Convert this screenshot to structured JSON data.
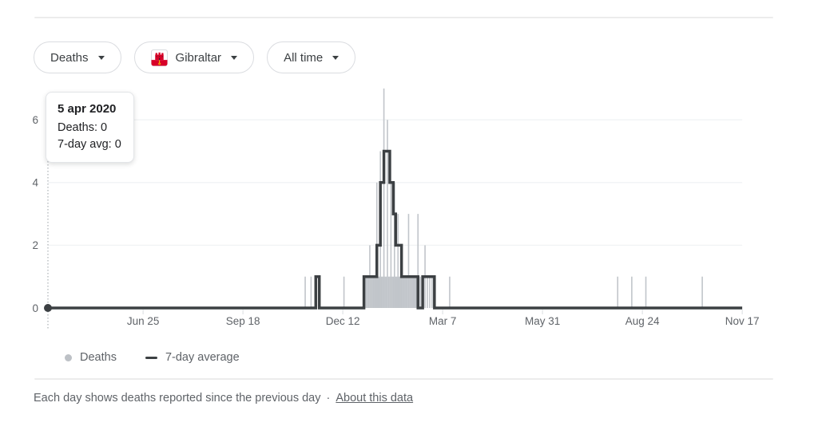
{
  "filters": {
    "metric": {
      "label": "Deaths"
    },
    "region": {
      "label": "Gibraltar"
    },
    "time": {
      "label": "All time"
    }
  },
  "icons": {
    "dropdown_caret": "chevron-down-icon",
    "region_flag": "gibraltar-flag-icon"
  },
  "tooltip": {
    "date": "5 apr 2020",
    "deaths": "Deaths: 0",
    "avg": "7-day avg: 0"
  },
  "chart_data": {
    "type": "bar",
    "x_start_date_label": "5 apr 2020",
    "x_axis": {
      "domain_days": [
        0,
        591
      ],
      "ticks": [
        {
          "label": "Jun 25",
          "day": 81
        },
        {
          "label": "Sep 18",
          "day": 166
        },
        {
          "label": "Dec 12",
          "day": 251
        },
        {
          "label": "Mar 7",
          "day": 336
        },
        {
          "label": "May 31",
          "day": 421
        },
        {
          "label": "Aug 24",
          "day": 506
        },
        {
          "label": "Nov 17",
          "day": 591
        }
      ]
    },
    "y_axis": {
      "ticks": [
        0,
        2,
        4,
        6
      ],
      "max": 7
    },
    "bars_day_value": [
      [
        219,
        1
      ],
      [
        224,
        1
      ],
      [
        252,
        1
      ],
      [
        269,
        1
      ],
      [
        270,
        1
      ],
      [
        271,
        1
      ],
      [
        272,
        1
      ],
      [
        273,
        1
      ],
      [
        274,
        2
      ],
      [
        275,
        1
      ],
      [
        276,
        1
      ],
      [
        277,
        1
      ],
      [
        278,
        1
      ],
      [
        279,
        1
      ],
      [
        280,
        4
      ],
      [
        281,
        1
      ],
      [
        282,
        1
      ],
      [
        283,
        5
      ],
      [
        284,
        1
      ],
      [
        285,
        1
      ],
      [
        286,
        7
      ],
      [
        287,
        1
      ],
      [
        288,
        1
      ],
      [
        289,
        6
      ],
      [
        290,
        1
      ],
      [
        291,
        1
      ],
      [
        292,
        4
      ],
      [
        293,
        1
      ],
      [
        294,
        1
      ],
      [
        295,
        4
      ],
      [
        296,
        1
      ],
      [
        297,
        1
      ],
      [
        298,
        3
      ],
      [
        299,
        1
      ],
      [
        300,
        1
      ],
      [
        301,
        1
      ],
      [
        302,
        1
      ],
      [
        303,
        1
      ],
      [
        304,
        1
      ],
      [
        305,
        1
      ],
      [
        306,
        1
      ],
      [
        307,
        3
      ],
      [
        308,
        1
      ],
      [
        309,
        1
      ],
      [
        310,
        1
      ],
      [
        311,
        1
      ],
      [
        312,
        1
      ],
      [
        313,
        1
      ],
      [
        314,
        1
      ],
      [
        315,
        3
      ],
      [
        317,
        1
      ],
      [
        319,
        1
      ],
      [
        321,
        2
      ],
      [
        323,
        1
      ],
      [
        325,
        1
      ],
      [
        327,
        1
      ],
      [
        342,
        1
      ],
      [
        485,
        1
      ],
      [
        497,
        1
      ],
      [
        509,
        1
      ],
      [
        557,
        1
      ]
    ],
    "avg_segments_day": [
      [
        0,
        228,
        0
      ],
      [
        228,
        231,
        1
      ],
      [
        231,
        269,
        0
      ],
      [
        269,
        280,
        1
      ],
      [
        280,
        283,
        2
      ],
      [
        283,
        286,
        4
      ],
      [
        286,
        291,
        5
      ],
      [
        291,
        294,
        4
      ],
      [
        294,
        296,
        3
      ],
      [
        296,
        301,
        2
      ],
      [
        301,
        315,
        1
      ],
      [
        315,
        319,
        0
      ],
      [
        319,
        329,
        1
      ],
      [
        329,
        591,
        0
      ]
    ],
    "cursor": {
      "day": 0,
      "value": 0
    },
    "legend": [
      {
        "type": "dot",
        "label": "Deaths"
      },
      {
        "type": "line",
        "label": "7-day average"
      }
    ],
    "colors": {
      "bar": "#c1c5ca",
      "avg_line": "#3c4043",
      "grid": "#f1f3f4",
      "axis_text": "#5f6368",
      "tick": "#dadce0",
      "cursor": "#9aa0a6",
      "cursor_dot": "#3c4043"
    }
  },
  "footer": {
    "text": "Each day shows deaths reported since the previous day",
    "separator": "·",
    "link_label": "About this data"
  }
}
